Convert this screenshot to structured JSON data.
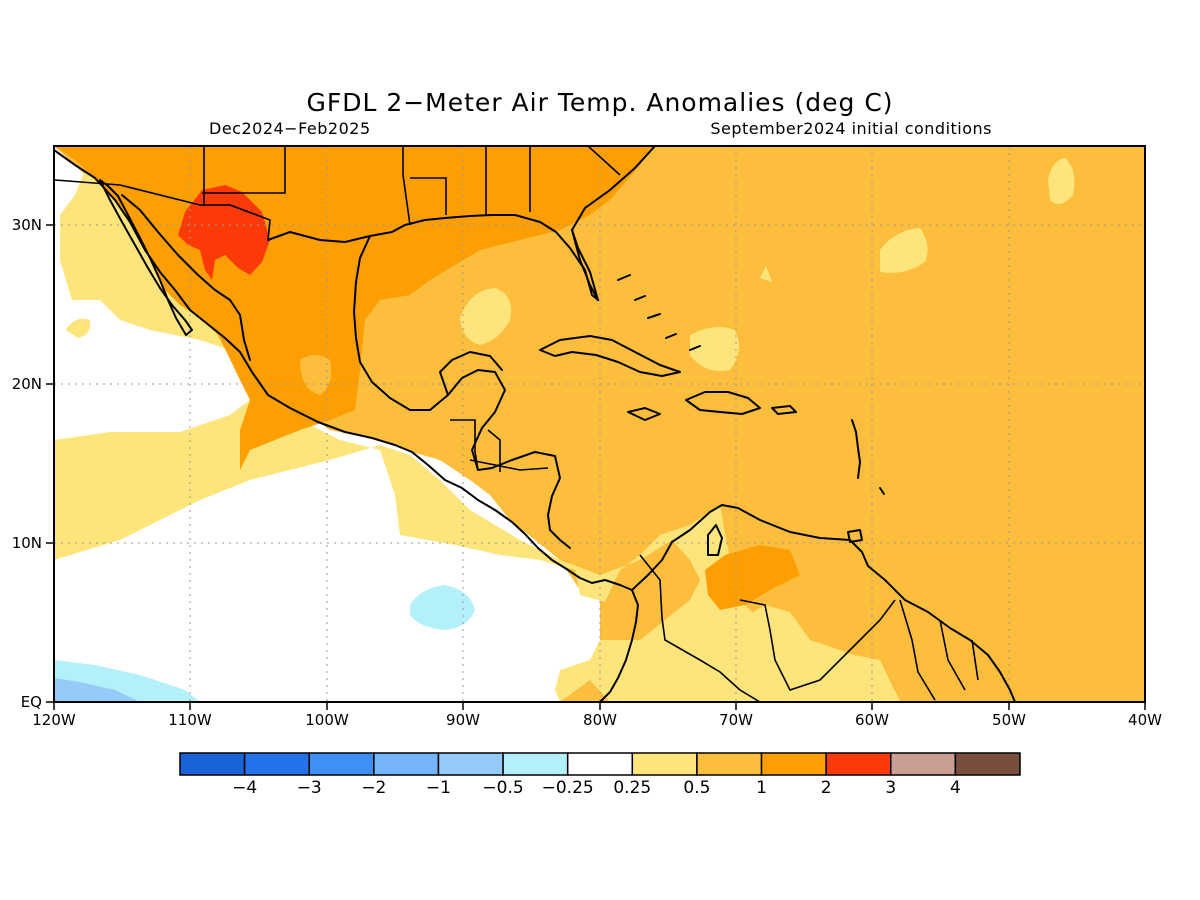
{
  "title": "GFDL 2−Meter Air Temp. Anomalies (deg C)",
  "subtitle_left": "Dec2024−Feb2025",
  "subtitle_right": "September2024 initial conditions",
  "units": "deg C",
  "map_extent": {
    "lon": [
      -120,
      -40
    ],
    "lat": [
      0,
      35
    ]
  },
  "x_ticks": [
    "120W",
    "110W",
    "100W",
    "90W",
    "80W",
    "70W",
    "60W",
    "50W",
    "40W"
  ],
  "y_ticks": [
    "EQ",
    "10N",
    "20N",
    "30N"
  ],
  "gridlines": "dotted",
  "colorbar": {
    "labels": [
      "−4",
      "−3",
      "−2",
      "−1",
      "−0.5",
      "−0.25",
      "0.25",
      "0.5",
      "1",
      "2",
      "3",
      "4"
    ],
    "bins": [
      {
        "range": "< -4",
        "color": "#1a62d8"
      },
      {
        "range": "-4 to -3",
        "color": "#2672ec"
      },
      {
        "range": "-3 to -2",
        "color": "#3e90f5"
      },
      {
        "range": "-2 to -1",
        "color": "#75b4f8"
      },
      {
        "range": "-1 to -0.5",
        "color": "#96cbf9"
      },
      {
        "range": "-0.5 to -0.25",
        "color": "#b4f0fa"
      },
      {
        "range": "-0.25 to 0.25",
        "color": "#ffffff"
      },
      {
        "range": "0.25 to 0.5",
        "color": "#fee57b"
      },
      {
        "range": "0.5 to 1",
        "color": "#fdbd3d"
      },
      {
        "range": "1 to 2",
        "color": "#fd9e02"
      },
      {
        "range": "2 to 3",
        "color": "#fc3a08"
      },
      {
        "range": "3 to 4",
        "color": "#c8a093"
      },
      {
        "range": "> 4",
        "color": "#7a4e3e"
      }
    ]
  },
  "anomaly_regions": [
    {
      "name": "Caribbean and western Atlantic",
      "level": "0.5 to 1",
      "color": "#fdbd3d"
    },
    {
      "name": "Mexico and southern United States",
      "level": "1 to 2",
      "color": "#fd9e02"
    },
    {
      "name": "northwestern Mexico",
      "level": "2 to 3",
      "color": "#fc3a08"
    },
    {
      "name": "northern South America",
      "level": "1 to 2",
      "color": "#fd9e02"
    },
    {
      "name": "eastern Pacific",
      "level": "-0.25 to 0.25",
      "color": "#ffffff"
    },
    {
      "name": "eastern Pacific near 90W",
      "level": "-0.5 to -0.25",
      "color": "#b4f0fa"
    },
    {
      "name": "equatorial Pacific near 115W",
      "level": "-1 to -0.5",
      "color": "#96cbf9"
    }
  ]
}
